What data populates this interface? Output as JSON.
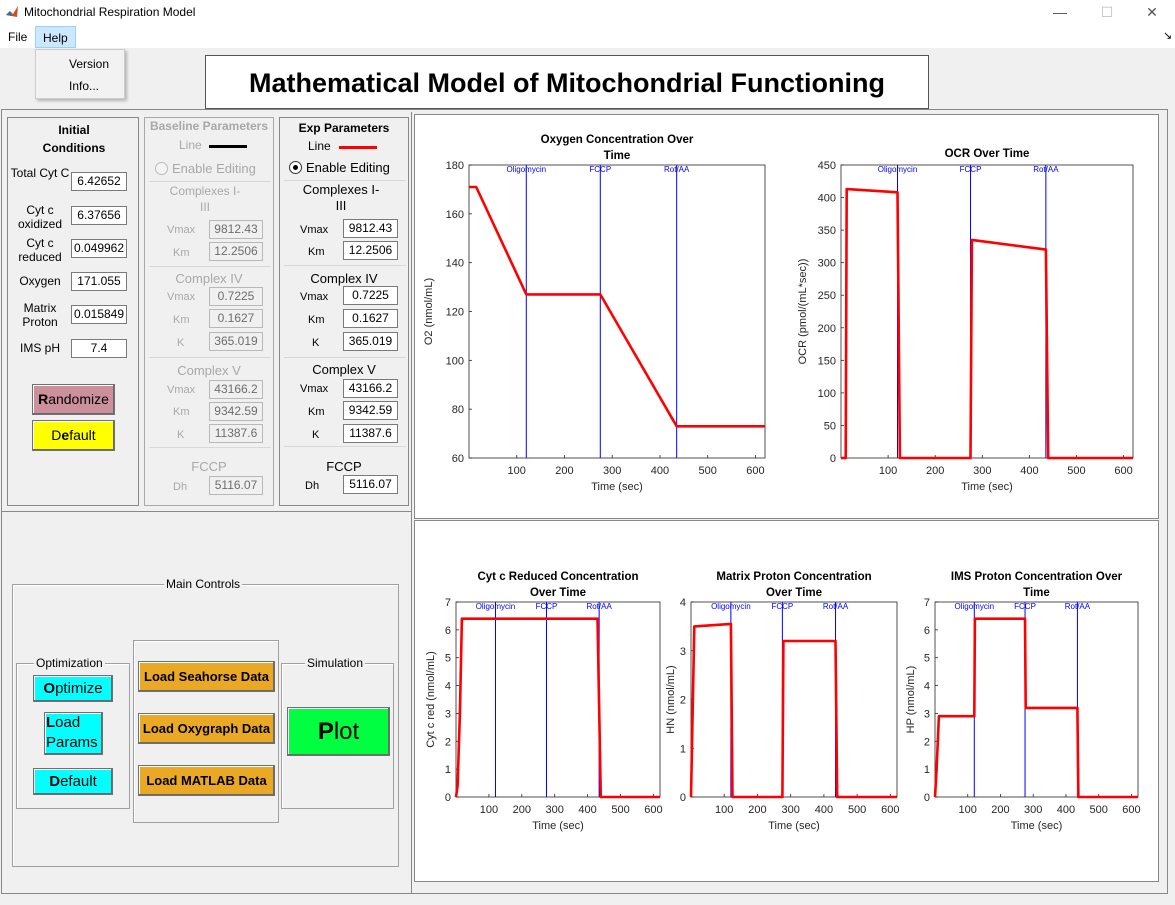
{
  "window": {
    "title": "Mitochondrial Respiration Model",
    "min": "—",
    "max": "☐",
    "close": "✕"
  },
  "menu": {
    "file": "File",
    "help": "Help",
    "help_items": [
      "Version",
      "Info..."
    ],
    "corner": "↘"
  },
  "heading": "Mathematical Model of Mitochondrial Functioning",
  "initial": {
    "title": "Initial Conditions",
    "fields": [
      {
        "label": "Total Cyt C",
        "value": "6.42652"
      },
      {
        "label": "Cyt c oxidized",
        "value": "6.37656"
      },
      {
        "label": "Cyt c reduced",
        "value": "0.049962"
      },
      {
        "label": "Oxygen",
        "value": "171.055"
      },
      {
        "label": "Matrix Proton",
        "value": "0.015849"
      },
      {
        "label": "IMS pH",
        "value": "7.4"
      }
    ],
    "randomize": {
      "accel": "R",
      "rest": "andomize"
    },
    "default": {
      "pre": "D",
      "accel": "e",
      "rest": "fault"
    }
  },
  "baseline": {
    "title": "Baseline Parameters",
    "line_label": "Line",
    "line_color": "#000000",
    "enable": "Enable Editing",
    "c13": "Complexes I-III",
    "vmax": "9812.43",
    "km": "12.2506",
    "c4": "Complex IV",
    "c4_vmax": "0.7225",
    "c4_km": "0.1627",
    "c4_k": "365.019",
    "c5": "Complex V",
    "c5_vmax": "43166.2",
    "c5_km": "9342.59",
    "c5_k": "11387.6",
    "fccp": "FCCP",
    "dh": "5116.07"
  },
  "exp": {
    "title": "Exp Parameters",
    "line_label": "Line",
    "line_color": "#ff0000",
    "enable": "Enable Editing",
    "c13": "Complexes I-III",
    "vmax": "9812.43",
    "km": "12.2506",
    "c4": "Complex IV",
    "c4_vmax": "0.7225",
    "c4_km": "0.1627",
    "c4_k": "365.019",
    "c5": "Complex V",
    "c5_vmax": "43166.2",
    "c5_km": "9342.59",
    "c5_k": "11387.6",
    "fccp": "FCCP",
    "dh": "5116.07"
  },
  "param_labels": {
    "vmax": "Vmax",
    "km": "Km",
    "k": "K",
    "dh": "Dh"
  },
  "controls": {
    "title": "Main Controls",
    "optimization": "Optimization",
    "optimize": {
      "accel": "O",
      "rest": "ptimize"
    },
    "load_params": {
      "accel": "L",
      "line1": "oad",
      "line2": "Params"
    },
    "default2": {
      "accel": "D",
      "rest": "efault"
    },
    "load_seahorse": "Load Seahorse Data",
    "load_oxygraph": "Load Oxygraph Data",
    "load_matlab": "Load MATLAB Data",
    "simulation": "Simulation",
    "plot": {
      "accel": "P",
      "rest": "lot"
    }
  },
  "colors": {
    "randomize": "#cc8f9c",
    "default_yellow": "#ffff00",
    "cyan": "#00ffff",
    "orange": "#e9a925",
    "green": "#00ff40",
    "series": "#ff0000",
    "event": "#0000ff"
  },
  "chart_data": [
    {
      "type": "line",
      "title": "Oxygen Concentration Over Time",
      "xlabel": "Time (sec)",
      "ylabel": "O2 (nmol/mL)",
      "xlim": [
        0,
        620
      ],
      "ylim": [
        60,
        180
      ],
      "xticks": [
        100,
        200,
        300,
        400,
        500,
        600
      ],
      "yticks": [
        60,
        80,
        100,
        120,
        140,
        160,
        180
      ],
      "events": [
        {
          "x": 120,
          "label": "Oligomycin"
        },
        {
          "x": 275,
          "label": "FCCP"
        },
        {
          "x": 435,
          "label": "Rot/AA"
        }
      ],
      "series": [
        {
          "name": "Exp",
          "x": [
            0,
            15,
            120,
            275,
            435,
            620
          ],
          "y": [
            171,
            171,
            127,
            127,
            73,
            73
          ]
        }
      ]
    },
    {
      "type": "line",
      "title": "OCR Over Time",
      "xlabel": "Time (sec)",
      "ylabel": "OCR (pmol/(mL*sec))",
      "xlim": [
        0,
        620
      ],
      "ylim": [
        0,
        450
      ],
      "xticks": [
        100,
        200,
        300,
        400,
        500,
        600
      ],
      "yticks": [
        0,
        50,
        100,
        150,
        200,
        250,
        300,
        350,
        400,
        450
      ],
      "events": [
        {
          "x": 120,
          "label": "Oligomycin"
        },
        {
          "x": 275,
          "label": "FCCP"
        },
        {
          "x": 435,
          "label": "Rot/AA"
        }
      ],
      "series": [
        {
          "name": "Exp",
          "x": [
            0,
            10,
            12,
            120,
            125,
            275,
            278,
            435,
            440,
            620
          ],
          "y": [
            0,
            0,
            413,
            408,
            0,
            0,
            335,
            320,
            0,
            0
          ]
        }
      ]
    },
    {
      "type": "line",
      "title": "Cyt c Reduced Concentration Over Time",
      "xlabel": "Time (sec)",
      "ylabel": "Cyt c red (nmol/mL)",
      "xlim": [
        0,
        620
      ],
      "ylim": [
        0,
        7
      ],
      "xticks": [
        100,
        200,
        300,
        400,
        500,
        600
      ],
      "yticks": [
        0,
        1,
        2,
        3,
        4,
        5,
        6,
        7
      ],
      "events": [
        {
          "x": 120,
          "label": "Oligomycin"
        },
        {
          "x": 275,
          "label": "FCCP"
        },
        {
          "x": 435,
          "label": "Rot/AA"
        }
      ],
      "series": [
        {
          "name": "Exp",
          "x": [
            0,
            5,
            12,
            18,
            430,
            440,
            620
          ],
          "y": [
            0,
            0.4,
            3,
            6.4,
            6.4,
            0,
            0
          ]
        }
      ]
    },
    {
      "type": "line",
      "title": "Matrix Proton Concentration Over Time",
      "xlabel": "Time (sec)",
      "ylabel": "HN (nmol/mL)",
      "xlim": [
        0,
        620
      ],
      "ylim": [
        0,
        4
      ],
      "xticks": [
        100,
        200,
        300,
        400,
        500,
        600
      ],
      "yticks": [
        0,
        1,
        2,
        3,
        4
      ],
      "events": [
        {
          "x": 120,
          "label": "Oligomycin"
        },
        {
          "x": 275,
          "label": "FCCP"
        },
        {
          "x": 435,
          "label": "Rot/AA"
        }
      ],
      "series": [
        {
          "name": "Exp",
          "x": [
            0,
            10,
            120,
            125,
            275,
            278,
            435,
            440,
            620
          ],
          "y": [
            0,
            3.5,
            3.55,
            0,
            0,
            3.2,
            3.2,
            0,
            0
          ]
        }
      ]
    },
    {
      "type": "line",
      "title": "IMS Proton Concentration Over Time",
      "xlabel": "Time (sec)",
      "ylabel": "HP (nmol/mL)",
      "xlim": [
        0,
        620
      ],
      "ylim": [
        0,
        7
      ],
      "xticks": [
        100,
        200,
        300,
        400,
        500,
        600
      ],
      "yticks": [
        0,
        1,
        2,
        3,
        4,
        5,
        6,
        7
      ],
      "events": [
        {
          "x": 120,
          "label": "Oligomycin"
        },
        {
          "x": 275,
          "label": "FCCP"
        },
        {
          "x": 435,
          "label": "Rot/AA"
        }
      ],
      "series": [
        {
          "name": "Exp",
          "x": [
            0,
            5,
            12,
            120,
            122,
            275,
            277,
            435,
            438,
            620
          ],
          "y": [
            0,
            1,
            2.9,
            2.9,
            6.4,
            6.4,
            3.2,
            3.2,
            0,
            0
          ]
        }
      ]
    }
  ]
}
